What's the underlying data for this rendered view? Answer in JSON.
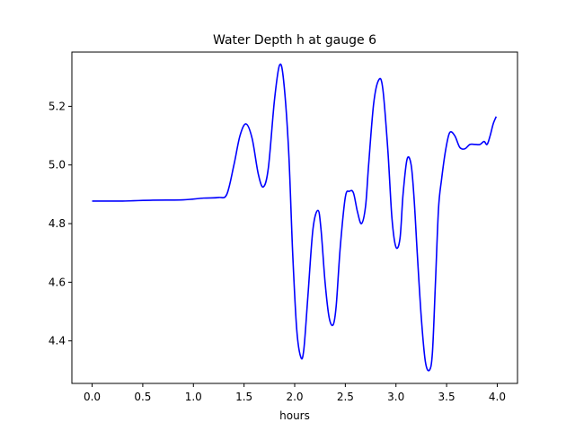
{
  "chart_data": {
    "type": "line",
    "title": "Water Depth h at gauge 6",
    "xlabel": "hours",
    "ylabel": "",
    "xlim": [
      -0.2,
      4.2
    ],
    "ylim": [
      4.255,
      5.385
    ],
    "xticks": [
      0.0,
      0.5,
      1.0,
      1.5,
      2.0,
      2.5,
      3.0,
      3.5,
      4.0
    ],
    "xtick_labels": [
      "0.0",
      "0.5",
      "1.0",
      "1.5",
      "2.0",
      "2.5",
      "3.0",
      "3.5",
      "4.0"
    ],
    "yticks": [
      4.4,
      4.6,
      4.8,
      5.0,
      5.2
    ],
    "ytick_labels": [
      "4.4",
      "4.6",
      "4.8",
      "5.0",
      "5.2"
    ],
    "grid": false,
    "series": [
      {
        "color": "#0000ff",
        "x": [
          0.0,
          0.3,
          0.6,
          0.9,
          1.1,
          1.25,
          1.33,
          1.4,
          1.46,
          1.52,
          1.58,
          1.64,
          1.69,
          1.74,
          1.8,
          1.85,
          1.89,
          1.94,
          1.98,
          2.02,
          2.06,
          2.09,
          2.13,
          2.18,
          2.23,
          2.26,
          2.3,
          2.34,
          2.38,
          2.41,
          2.45,
          2.5,
          2.54,
          2.58,
          2.62,
          2.66,
          2.7,
          2.73,
          2.78,
          2.83,
          2.87,
          2.92,
          2.96,
          3.0,
          3.04,
          3.07,
          3.11,
          3.15,
          3.18,
          3.21,
          3.25,
          3.29,
          3.33,
          3.36,
          3.39,
          3.42,
          3.45,
          3.49,
          3.53,
          3.58,
          3.63,
          3.68,
          3.73,
          3.78,
          3.83,
          3.87,
          3.9,
          3.93,
          3.96,
          3.99
        ],
        "y": [
          4.877,
          4.877,
          4.88,
          4.881,
          4.887,
          4.889,
          4.9,
          5.0,
          5.1,
          5.14,
          5.09,
          4.97,
          4.925,
          4.99,
          5.22,
          5.34,
          5.29,
          5.05,
          4.7,
          4.44,
          4.345,
          4.37,
          4.55,
          4.78,
          4.845,
          4.78,
          4.6,
          4.48,
          4.455,
          4.52,
          4.72,
          4.89,
          4.91,
          4.905,
          4.84,
          4.8,
          4.86,
          5.0,
          5.21,
          5.29,
          5.26,
          5.05,
          4.82,
          4.72,
          4.75,
          4.9,
          5.02,
          5.0,
          4.88,
          4.7,
          4.48,
          4.33,
          4.3,
          4.36,
          4.6,
          4.85,
          4.95,
          5.05,
          5.11,
          5.1,
          5.06,
          5.055,
          5.07,
          5.07,
          5.07,
          5.08,
          5.07,
          5.1,
          5.14,
          5.165
        ]
      }
    ]
  }
}
